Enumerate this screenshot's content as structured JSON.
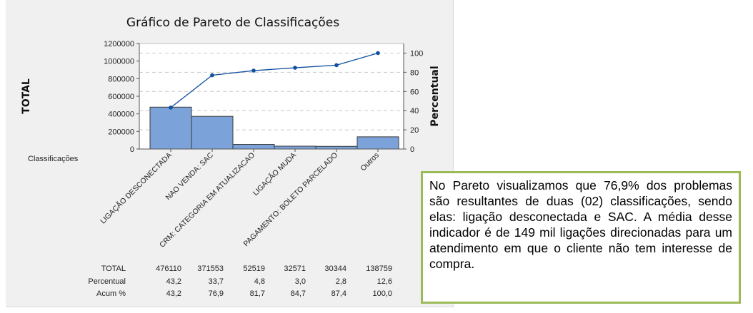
{
  "chart_data": {
    "type": "pareto",
    "title": "Gráfico de Pareto de Classificações",
    "ylabel_left": "TOTAL",
    "ylabel_right": "Percentual",
    "xlabel": "Classificações",
    "ylim_left": [
      0,
      1200000
    ],
    "yticks_left": [
      "0",
      "200000",
      "400000",
      "600000",
      "800000",
      "1000000",
      "1200000"
    ],
    "ylim_right": [
      0,
      110
    ],
    "yticks_right": [
      "0",
      "20",
      "40",
      "60",
      "80",
      "100"
    ],
    "categories": [
      "LIGAÇÃO DESCONECTADA",
      "NAO VENDA: SAC",
      "CRM: CATEGORIA EM ATUALIZACAO",
      "LIGAÇÃO MUDA",
      "PAGAMENTO: BOLETO PARCELADO",
      "Outros"
    ],
    "values": [
      476110,
      371553,
      52519,
      32571,
      30344,
      138759
    ],
    "cumulative_percent": [
      43.2,
      76.9,
      81.7,
      84.7,
      87.4,
      100.0
    ],
    "bar_color": "#7ba3d9",
    "line_color": "#0f4fa0",
    "grid": "horizontal dashed",
    "table": {
      "row_labels": [
        "TOTAL",
        "Percentual",
        "Acum %"
      ],
      "rows": [
        [
          "476110",
          "371553",
          "52519",
          "32571",
          "30344",
          "138759"
        ],
        [
          "43,2",
          "33,7",
          "4,8",
          "3,0",
          "2,8",
          "12,6"
        ],
        [
          "43,2",
          "76,9",
          "81,7",
          "84,7",
          "87,4",
          "100,0"
        ]
      ]
    }
  },
  "annotation": {
    "text": "No Pareto visualizamos que 76,9% dos problemas são resultantes de duas (02) classificações, sendo elas: ligação desconectada e SAC. A média desse indicador é de 149 mil ligações direcionadas para um atendimento em que o cliente não tem interesse de compra.",
    "border_color": "#9bbb59"
  }
}
